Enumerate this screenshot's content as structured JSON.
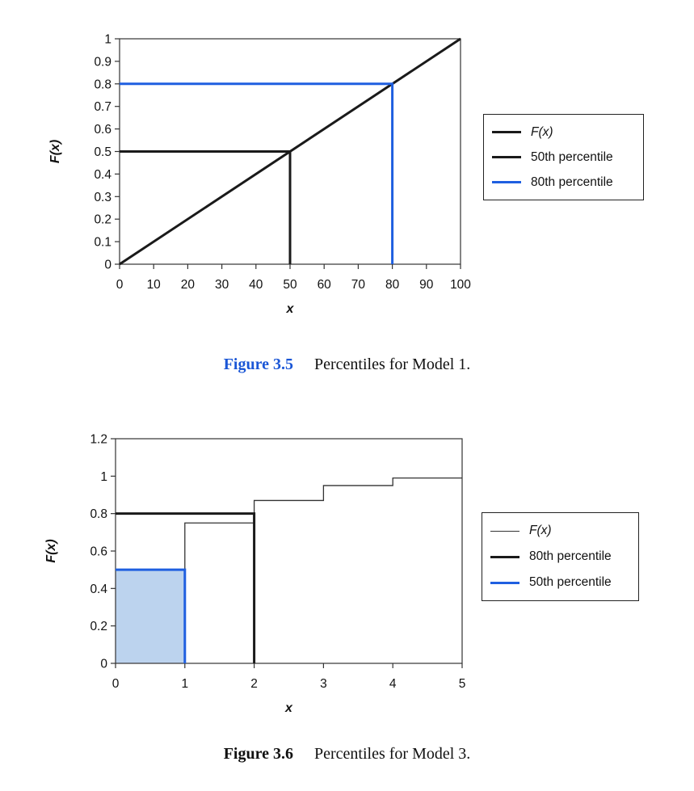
{
  "chart_data": [
    {
      "type": "line",
      "ylabel": "F(x)",
      "xlabel": "x",
      "xlim": [
        0,
        100
      ],
      "ylim": [
        0,
        1
      ],
      "xticks": [
        "0",
        "10",
        "20",
        "30",
        "40",
        "50",
        "60",
        "70",
        "80",
        "90",
        "100"
      ],
      "yticks": [
        "0",
        "0.1",
        "0.2",
        "0.3",
        "0.4",
        "0.5",
        "0.6",
        "0.7",
        "0.8",
        "0.9",
        "1"
      ],
      "grid": false,
      "legend_position": "right",
      "series": [
        {
          "name": "F(x)",
          "color": "#1a1a1a",
          "points": [
            [
              0,
              0
            ],
            [
              100,
              1
            ]
          ]
        },
        {
          "name": "50th percentile",
          "color": "#1a1a1a",
          "points": [
            [
              0,
              0.5
            ],
            [
              50,
              0.5
            ],
            [
              50,
              0
            ]
          ]
        },
        {
          "name": "80th percentile",
          "color": "#1f5fe0",
          "points": [
            [
              0,
              0.8
            ],
            [
              80,
              0.8
            ],
            [
              80,
              0
            ]
          ]
        }
      ],
      "caption_number": "Figure 3.5",
      "caption_text": "Percentiles for Model 1."
    },
    {
      "type": "line",
      "ylabel": "F(x)",
      "xlabel": "x",
      "xlim": [
        0,
        5
      ],
      "ylim": [
        0,
        1.2
      ],
      "xticks": [
        "0",
        "1",
        "2",
        "3",
        "4",
        "5"
      ],
      "yticks": [
        "0",
        "0.2",
        "0.4",
        "0.6",
        "0.8",
        "1",
        "1.2"
      ],
      "grid": false,
      "legend_position": "right",
      "series": [
        {
          "name": "F(x)",
          "color": "#333333",
          "thin": true,
          "points": [
            [
              0,
              0.5
            ],
            [
              1,
              0.5
            ],
            [
              1,
              0.75
            ],
            [
              2,
              0.75
            ],
            [
              2,
              0.87
            ],
            [
              3,
              0.87
            ],
            [
              3,
              0.95
            ],
            [
              4,
              0.95
            ],
            [
              4,
              0.99
            ],
            [
              5,
              0.99
            ]
          ]
        },
        {
          "name": "80th percentile",
          "color": "#1a1a1a",
          "points": [
            [
              0,
              0.8
            ],
            [
              2,
              0.8
            ],
            [
              2,
              0
            ]
          ]
        },
        {
          "name": "50th percentile",
          "color": "#1f5fe0",
          "points": [
            [
              0,
              0.5
            ],
            [
              1,
              0.5
            ],
            [
              1,
              0
            ]
          ]
        }
      ],
      "shaded_region": {
        "x": [
          0,
          1
        ],
        "y": [
          0,
          0.5
        ],
        "color": "#bcd3ee"
      },
      "caption_number": "Figure 3.6",
      "caption_text": "Percentiles for Model 3."
    }
  ]
}
